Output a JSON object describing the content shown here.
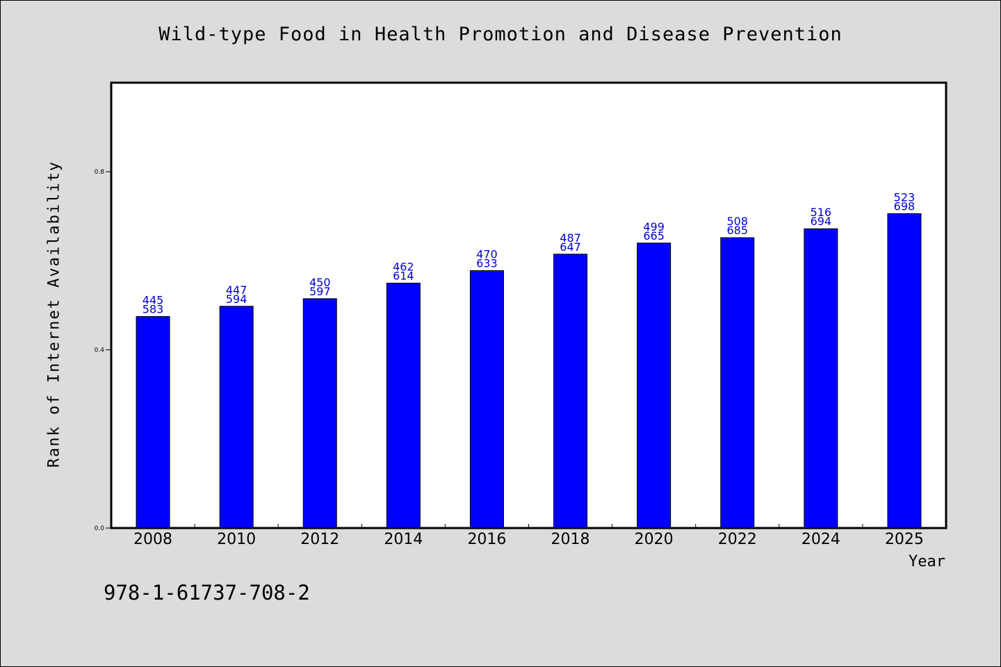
{
  "chart_data": {
    "type": "bar",
    "title": "Wild-type Food in Health Promotion and Disease Prevention",
    "xlabel": "Year",
    "ylabel": "Rank of Internet Availability",
    "footer_text": "978-1-61737-708-2",
    "categories": [
      "2008",
      "2010",
      "2012",
      "2014",
      "2016",
      "2018",
      "2020",
      "2022",
      "2024",
      "2025"
    ],
    "values": [
      0.475,
      0.498,
      0.515,
      0.55,
      0.578,
      0.615,
      0.64,
      0.652,
      0.672,
      0.706
    ],
    "label_top": [
      "445",
      "447",
      "450",
      "462",
      "470",
      "487",
      "499",
      "508",
      "516",
      "523"
    ],
    "label_bottom": [
      "583",
      "594",
      "597",
      "614",
      "633",
      "647",
      "665",
      "685",
      "694",
      "698"
    ],
    "ylim": [
      0,
      1.0
    ],
    "yticks": [
      0.0,
      0.4,
      0.8
    ],
    "ytick_labels": [
      "0.0",
      "0.4",
      "0.8"
    ],
    "grid": false,
    "colors": {
      "bar": "#0000ff",
      "label": "#0000cc",
      "background": "#dcdcdc",
      "plot_background": "#ffffff"
    }
  }
}
